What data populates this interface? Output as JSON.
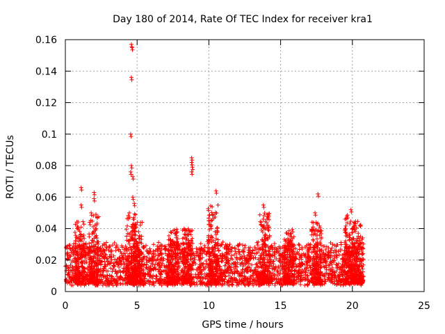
{
  "chart_data": {
    "type": "scatter",
    "title": "Day 180 of 2014, Rate Of TEC Index for receiver kra1",
    "xlabel": "GPS time / hours",
    "ylabel": "ROTI / TECUs",
    "xlim": [
      0,
      25
    ],
    "ylim": [
      0,
      0.16
    ],
    "x_ticks": [
      "0",
      "5",
      "10",
      "15",
      "20",
      "25"
    ],
    "y_ticks": [
      "0",
      "0.02",
      "0.04",
      "0.06",
      "0.08",
      "0.1",
      "0.12",
      "0.14",
      "0.16"
    ],
    "grid": true,
    "marker": "+",
    "marker_color": "#ff0000",
    "series": [
      {
        "notable_points": [
          {
            "x": 4.6,
            "y": 0.157
          },
          {
            "x": 4.65,
            "y": 0.155
          },
          {
            "x": 4.6,
            "y": 0.136
          },
          {
            "x": 4.55,
            "y": 0.1
          },
          {
            "x": 4.6,
            "y": 0.08
          },
          {
            "x": 4.55,
            "y": 0.076
          },
          {
            "x": 4.7,
            "y": 0.073
          },
          {
            "x": 8.8,
            "y": 0.085
          },
          {
            "x": 8.8,
            "y": 0.082
          },
          {
            "x": 8.85,
            "y": 0.079
          },
          {
            "x": 8.8,
            "y": 0.076
          },
          {
            "x": 1.1,
            "y": 0.066
          },
          {
            "x": 2.0,
            "y": 0.063
          },
          {
            "x": 2.0,
            "y": 0.059
          },
          {
            "x": 10.5,
            "y": 0.064
          },
          {
            "x": 17.6,
            "y": 0.062
          },
          {
            "x": 4.7,
            "y": 0.06
          },
          {
            "x": 4.8,
            "y": 0.056
          },
          {
            "x": 1.1,
            "y": 0.055
          },
          {
            "x": 13.8,
            "y": 0.055
          },
          {
            "x": 19.9,
            "y": 0.052
          },
          {
            "x": 17.4,
            "y": 0.05
          },
          {
            "x": 1.8,
            "y": 0.05
          }
        ],
        "dense_band": {
          "x_range": [
            0,
            20.8
          ],
          "y_typical_range": [
            0.005,
            0.03
          ],
          "bursts": [
            {
              "x": 1.0,
              "y_max": 0.045
            },
            {
              "x": 2.0,
              "y_max": 0.05
            },
            {
              "x": 4.6,
              "y_max": 0.05
            },
            {
              "x": 5.0,
              "y_max": 0.045
            },
            {
              "x": 7.5,
              "y_max": 0.04
            },
            {
              "x": 8.5,
              "y_max": 0.04
            },
            {
              "x": 10.3,
              "y_max": 0.055
            },
            {
              "x": 13.9,
              "y_max": 0.05
            },
            {
              "x": 15.6,
              "y_max": 0.04
            },
            {
              "x": 17.5,
              "y_max": 0.045
            },
            {
              "x": 19.8,
              "y_max": 0.05
            },
            {
              "x": 20.4,
              "y_max": 0.045
            }
          ]
        }
      }
    ]
  }
}
